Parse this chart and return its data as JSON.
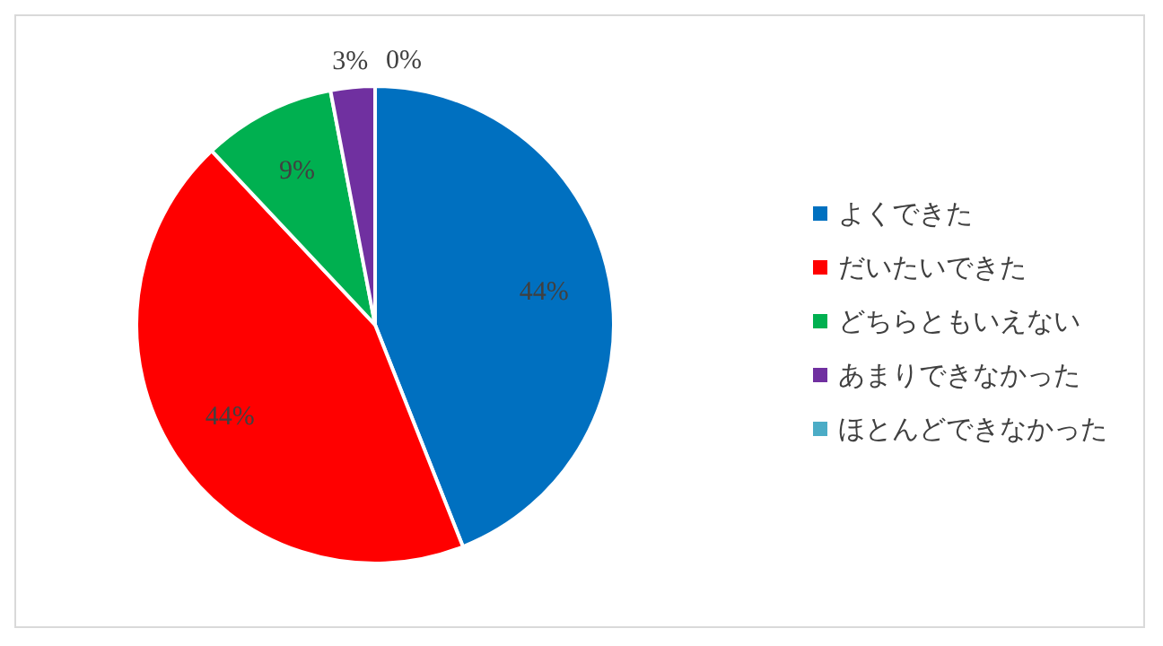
{
  "chart_data": {
    "type": "pie",
    "categories": [
      "よくできた",
      "だいたいできた",
      "どちらともいえない",
      "あまりできなかった",
      "ほとんどできなかった"
    ],
    "values": [
      44,
      44,
      9,
      3,
      0
    ],
    "colors": [
      "#0070c0",
      "#ff0000",
      "#00b050",
      "#7030a0",
      "#4bacc6"
    ],
    "value_labels": [
      "44%",
      "44%",
      "9%",
      "3%",
      "0%"
    ],
    "legend": "right"
  }
}
